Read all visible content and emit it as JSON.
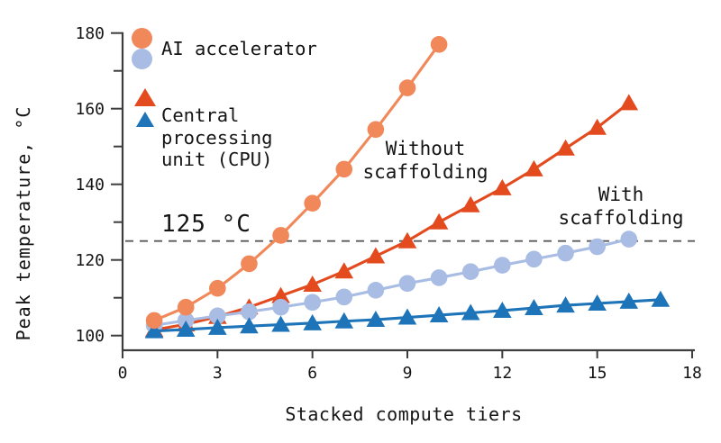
{
  "chart_data": {
    "type": "line",
    "title": "",
    "xlabel": "Stacked compute tiers",
    "ylabel": "Peak temperature, °C",
    "xlim": [
      0,
      18
    ],
    "ylim": [
      96,
      180
    ],
    "x_ticks": [
      0,
      3,
      6,
      9,
      12,
      15,
      18
    ],
    "y_ticks": [
      100,
      120,
      140,
      160,
      180
    ],
    "y_minor_ticks": [
      110,
      130,
      150,
      170
    ],
    "grid": "off",
    "legend_position": "top-left",
    "threshold": {
      "value": 125,
      "label": "125 °C"
    },
    "series": [
      {
        "id": "cpu-without",
        "name": "Central processing unit (CPU) — without scaffolding",
        "marker": "triangle",
        "color": "#E34A1E",
        "x": [
          1,
          2,
          3,
          4,
          5,
          6,
          7,
          8,
          9,
          10,
          11,
          12,
          13,
          14,
          15,
          16
        ],
        "values": [
          101.5,
          103,
          105,
          107.5,
          110.5,
          113.5,
          117,
          121,
          125,
          130,
          134.5,
          139,
          144,
          149.5,
          155,
          161.5
        ]
      },
      {
        "id": "ai-accel-with",
        "name": "AI accelerator — with scaffolding",
        "marker": "circle",
        "color": "#A8BCE4",
        "x": [
          1,
          2,
          3,
          4,
          5,
          6,
          7,
          8,
          9,
          10,
          11,
          12,
          13,
          14,
          15,
          16
        ],
        "values": [
          102.7,
          104,
          105.2,
          106.3,
          107.5,
          108.8,
          110.2,
          112,
          113.8,
          115.3,
          116.9,
          118.6,
          120.2,
          121.8,
          123.5,
          125.5
        ]
      },
      {
        "id": "cpu-with",
        "name": "Central processing unit (CPU) — with scaffolding",
        "marker": "triangle",
        "color": "#1E74B8",
        "x": [
          1,
          2,
          3,
          4,
          5,
          6,
          7,
          8,
          9,
          10,
          11,
          12,
          13,
          14,
          15,
          16,
          17
        ],
        "values": [
          101.2,
          101.6,
          102.1,
          102.5,
          102.9,
          103.3,
          103.8,
          104.2,
          104.8,
          105.4,
          106,
          106.6,
          107.3,
          108,
          108.5,
          109,
          109.5
        ]
      },
      {
        "id": "ai-accel-without",
        "name": "AI accelerator — without scaffolding",
        "marker": "circle",
        "color": "#F0885A",
        "x": [
          1,
          2,
          3,
          4,
          5,
          6,
          7,
          8,
          9,
          10
        ],
        "values": [
          104,
          107.5,
          112.5,
          119,
          126.5,
          135,
          144,
          154.5,
          165.5,
          177
        ]
      }
    ],
    "legend": [
      {
        "label": "AI accelerator",
        "marker": "circle",
        "marker_colors": [
          "#F0885A",
          "#A8BCE4"
        ]
      },
      {
        "label": "Central processing unit (CPU)",
        "lines": [
          "Central",
          "processing",
          "unit (CPU)"
        ],
        "marker": "triangle",
        "marker_colors": [
          "#E34A1E",
          "#1E74B8"
        ]
      }
    ],
    "annotations": [
      {
        "id": "without",
        "lines": [
          "Without",
          "scaffolding"
        ]
      },
      {
        "id": "with",
        "lines": [
          "With",
          "scaffolding"
        ]
      }
    ],
    "colors": {
      "axis": "#3d3d3d",
      "text": "#141414",
      "threshold_line": "#5a5a5a",
      "ai_without": "#F0885A",
      "ai_with": "#A8BCE4",
      "cpu_without": "#E34A1E",
      "cpu_with": "#1E74B8"
    }
  }
}
